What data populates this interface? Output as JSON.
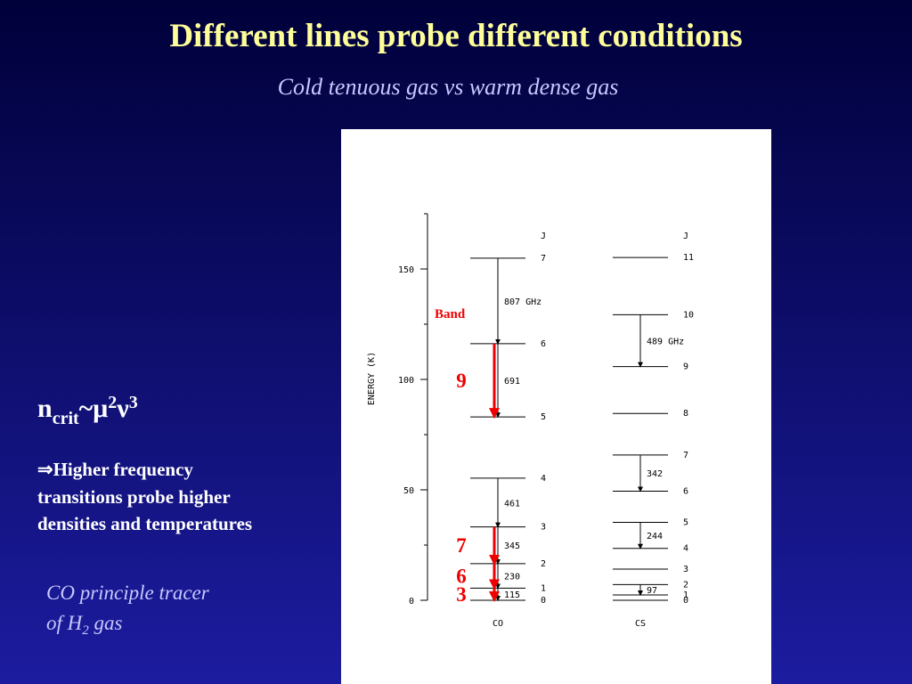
{
  "title": "Different lines probe different conditions",
  "subtitle": "Cold tenuous gas vs warm dense gas",
  "formula": {
    "n": "n",
    "sub": "crit",
    "mid": "~μ",
    "sup1": "2",
    "nu": "ν",
    "sup2": "3"
  },
  "bullet": [
    "⇒Higher frequency",
    "transitions probe higher",
    "densities and temperatures"
  ],
  "tracer": {
    "line1": "CO principle tracer",
    "line2a": "of H",
    "line2sub": "2",
    "line2b": " gas"
  },
  "diagram": {
    "axis_label": "ENERGY (K)",
    "ylim": [
      0,
      175
    ],
    "yticks": [
      0,
      50,
      100,
      150
    ],
    "band_label": "Band",
    "j_header": "J",
    "molecules": [
      {
        "name": "CO",
        "levels": [
          {
            "J": "0",
            "energy": 0
          },
          {
            "J": "1",
            "energy": 5.5,
            "line": "115",
            "band": "3"
          },
          {
            "J": "2",
            "energy": 16.6,
            "line": "230",
            "band": "6"
          },
          {
            "J": "3",
            "energy": 33.2,
            "line": "345",
            "band": "7"
          },
          {
            "J": "4",
            "energy": 55.3,
            "line": "461"
          },
          {
            "J": "5",
            "energy": 83.0
          },
          {
            "J": "6",
            "energy": 116.2,
            "line": "691",
            "band": "9"
          },
          {
            "J": "7",
            "energy": 154.9,
            "line": "807 GHz"
          }
        ]
      },
      {
        "name": "CS",
        "levels": [
          {
            "J": "0",
            "energy": 0
          },
          {
            "J": "1",
            "energy": 2.4
          },
          {
            "J": "2",
            "energy": 7.1,
            "line": "97"
          },
          {
            "J": "3",
            "energy": 14.1
          },
          {
            "J": "4",
            "energy": 23.5
          },
          {
            "J": "5",
            "energy": 35.3,
            "line": "244"
          },
          {
            "J": "6",
            "energy": 49.4
          },
          {
            "J": "7",
            "energy": 65.8,
            "line": "342"
          },
          {
            "J": "8",
            "energy": 84.6
          },
          {
            "J": "9",
            "energy": 105.8
          },
          {
            "J": "10",
            "energy": 129.3,
            "line": "489 GHz"
          },
          {
            "J": "11",
            "energy": 155.2
          }
        ]
      }
    ]
  }
}
